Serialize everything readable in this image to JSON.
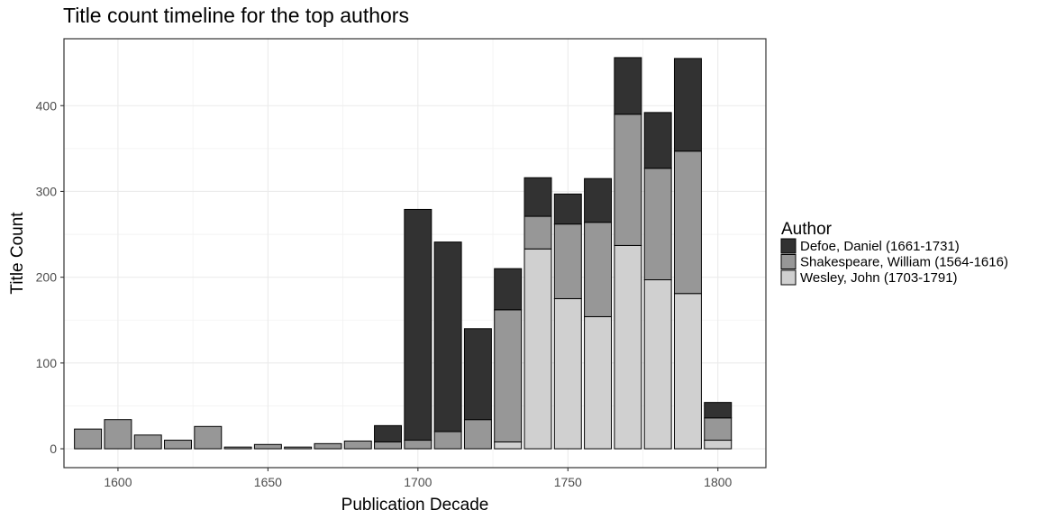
{
  "chart_data": {
    "type": "bar",
    "stacked": true,
    "title": "Title count timeline for the top authors",
    "xlabel": "Publication Decade",
    "ylabel": "Title Count",
    "x_ticks": [
      1600,
      1650,
      1700,
      1750,
      1800
    ],
    "y_ticks": [
      0,
      100,
      200,
      300,
      400
    ],
    "xlim": [
      1582,
      1816
    ],
    "ylim": [
      -22,
      478
    ],
    "grid": true,
    "legend_title": "Author",
    "legend_position": "right",
    "x": [
      1590,
      1600,
      1610,
      1620,
      1630,
      1640,
      1650,
      1660,
      1670,
      1680,
      1690,
      1700,
      1710,
      1720,
      1730,
      1740,
      1750,
      1760,
      1770,
      1780,
      1790,
      1800
    ],
    "series": [
      {
        "name": "Wesley, John (1703-1791)",
        "color": "#d0d0d0",
        "values": [
          0,
          0,
          0,
          0,
          0,
          0,
          0,
          0,
          0,
          0,
          0,
          0,
          0,
          0,
          8,
          233,
          175,
          154,
          237,
          197,
          181,
          10
        ]
      },
      {
        "name": "Shakespeare, William (1564-1616)",
        "color": "#979797",
        "values": [
          23,
          34,
          16,
          10,
          26,
          2,
          5,
          2,
          6,
          9,
          8,
          10,
          20,
          34,
          154,
          38,
          87,
          110,
          153,
          130,
          166,
          26
        ]
      },
      {
        "name": "Defoe, Daniel (1661-1731)",
        "color": "#323232",
        "values": [
          0,
          0,
          0,
          0,
          0,
          0,
          0,
          0,
          0,
          0,
          19,
          269,
          221,
          106,
          48,
          45,
          35,
          51,
          66,
          65,
          108,
          18
        ]
      }
    ]
  }
}
